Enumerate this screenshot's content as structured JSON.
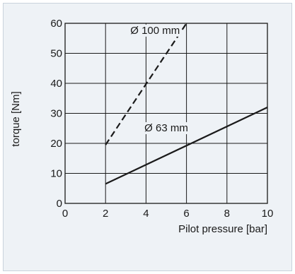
{
  "chart_data": {
    "type": "line",
    "xlabel": "Pilot pressure [bar]",
    "ylabel": "torque [Nm]",
    "xlim": [
      0,
      10
    ],
    "ylim": [
      0,
      60
    ],
    "xticks": [
      "0",
      "2",
      "4",
      "6",
      "8",
      "10"
    ],
    "yticks": [
      "0",
      "10",
      "20",
      "30",
      "40",
      "50",
      "60"
    ],
    "grid": true,
    "series": [
      {
        "name": "Ø 100 mm",
        "style": "dashed",
        "x": [
          2,
          6
        ],
        "y": [
          19.5,
          60
        ]
      },
      {
        "name": "Ø 63 mm",
        "style": "solid",
        "x": [
          2,
          10
        ],
        "y": [
          6.5,
          32
        ]
      }
    ],
    "annotations": [
      {
        "text": "Ø 100 mm",
        "x": 4.45,
        "y": 56.5
      },
      {
        "text": "Ø 63 mm",
        "x": 5.0,
        "y": 24
      }
    ],
    "colors": {
      "line": "#1a1a1a",
      "grid": "#1a1a1a",
      "panel": "#eef2f6",
      "panel_border": "#c9d3dc"
    }
  }
}
